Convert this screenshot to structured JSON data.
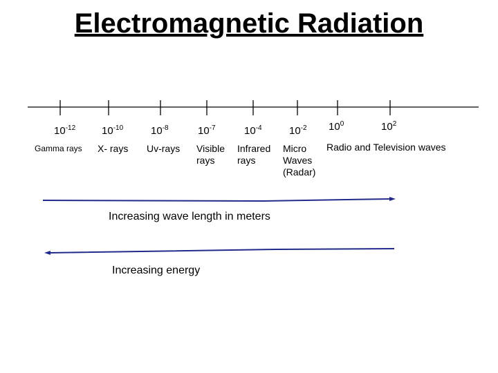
{
  "title": "Electromagnetic Radiation",
  "spectrum": [
    {
      "base": "10",
      "exponent": "-12",
      "name": "Gamma rays"
    },
    {
      "base": "10",
      "exponent": "-10",
      "name": "X- rays"
    },
    {
      "base": "10",
      "exponent": "-8",
      "name": "Uv-rays"
    },
    {
      "base": "10",
      "exponent": "-7",
      "name": "Visible rays"
    },
    {
      "base": "10",
      "exponent": "-4",
      "name": "Infrared rays"
    },
    {
      "base": "10",
      "exponent": "-2",
      "name": "Micro Waves (Radar)"
    },
    {
      "base": "10",
      "exponent": "0",
      "name": null
    },
    {
      "base": "10",
      "exponent": "2",
      "name": "Radio and Television waves"
    }
  ],
  "annotations": [
    "Increasing wave length in meters",
    "Increasing energy"
  ]
}
